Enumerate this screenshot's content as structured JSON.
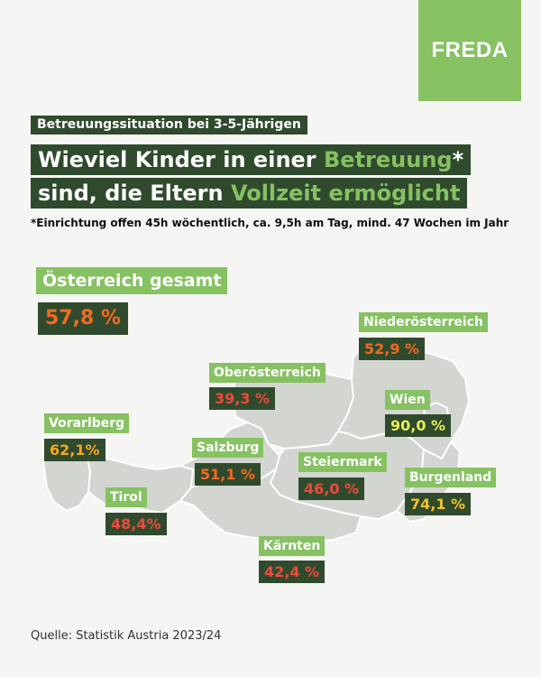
{
  "brand": {
    "logo_text": "FREDA",
    "accent": "#86c162",
    "dark": "#2f4a2d"
  },
  "subtitle": "Betreuungssituation bei 3-5-Jährigen",
  "headline": {
    "line1_a": "Wieviel Kinder in einer ",
    "line1_accent": "Betreuung",
    "line1_b": "*",
    "line2_a": "sind, die Eltern ",
    "line2_accent": "Vollzeit ermöglicht"
  },
  "footnote": "*Einrichtung offen 45h wöchentlich, ca. 9,5h am Tag, mind. 47 Wochen im Jahr",
  "national": {
    "label": "Österreich gesamt",
    "value": "57,8 %",
    "color": "#f36b22"
  },
  "regions": [
    {
      "name": "Niederösterreich",
      "value": "52,9 %",
      "color": "#f36b22"
    },
    {
      "name": "Oberösterreich",
      "value": "39,3 %",
      "color": "#ef4b3c"
    },
    {
      "name": "Wien",
      "value": "90,0 %",
      "color": "#e6ef5a"
    },
    {
      "name": "Vorarlberg",
      "value": "62,1%",
      "color": "#f5a623"
    },
    {
      "name": "Salzburg",
      "value": "51,1 %",
      "color": "#f36b22"
    },
    {
      "name": "Steiermark",
      "value": "46,0 %",
      "color": "#ef4b3c"
    },
    {
      "name": "Burgenland",
      "value": "74,1 %",
      "color": "#f3c12c"
    },
    {
      "name": "Tirol",
      "value": "48,4%",
      "color": "#ef4b3c"
    },
    {
      "name": "Kärnten",
      "value": "42,4 %",
      "color": "#ef4b3c"
    }
  ],
  "source": "Quelle: Statistik Austria 2023/24"
}
